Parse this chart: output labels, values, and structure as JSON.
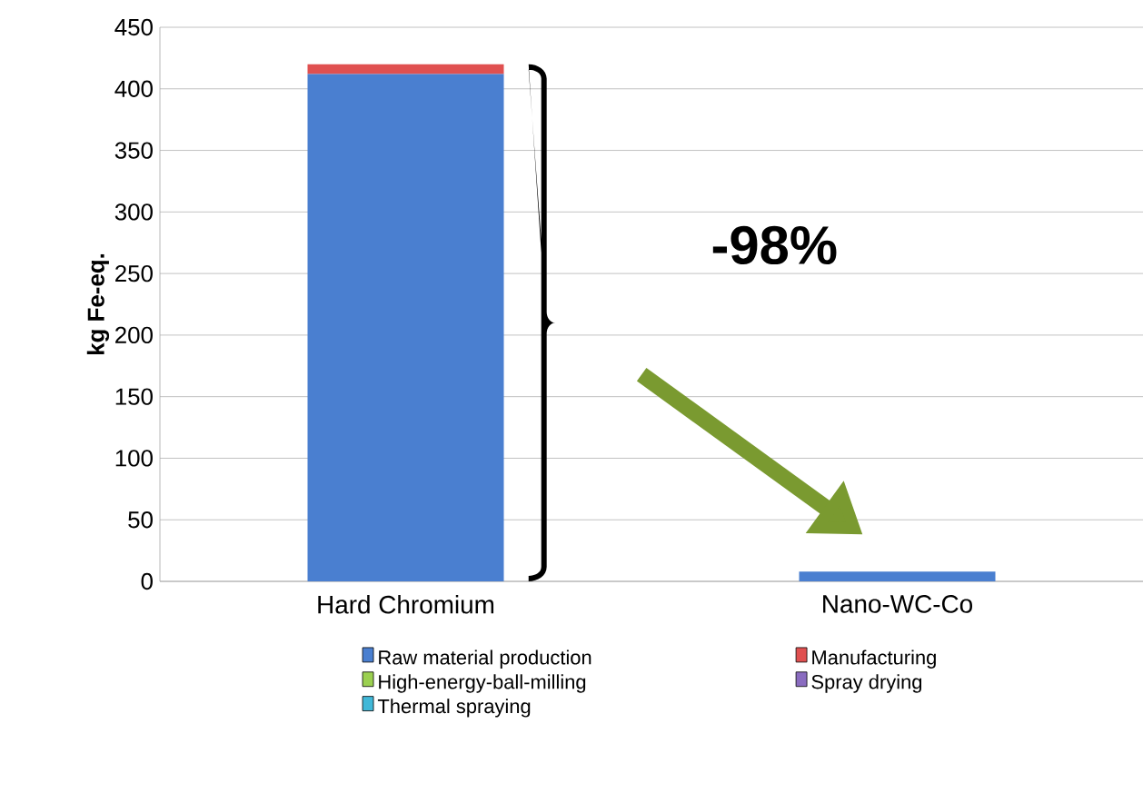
{
  "chart_data": {
    "type": "bar",
    "stacked": true,
    "ylabel": "kg Fe-eq.",
    "categories": [
      "Hard Chromium",
      "Nano-WC-Co"
    ],
    "series": [
      {
        "name": "Raw material production",
        "color": "#4a7fd0",
        "values": [
          412,
          8
        ]
      },
      {
        "name": "Manufacturing",
        "color": "#e05050",
        "values": [
          8,
          0
        ]
      },
      {
        "name": "High-energy-ball-milling",
        "color": "#9bd050",
        "values": [
          0,
          0
        ]
      },
      {
        "name": "Spray drying",
        "color": "#8a6cc0",
        "values": [
          0,
          0
        ]
      },
      {
        "name": "Thermal spraying",
        "color": "#40b8d8",
        "values": [
          0,
          0
        ]
      }
    ],
    "ylim": [
      0,
      450
    ],
    "yticks": [
      0,
      50,
      100,
      150,
      200,
      250,
      300,
      350,
      400,
      450
    ],
    "grid": "y",
    "legend": "bottom",
    "annotations": [
      "-98%"
    ]
  }
}
